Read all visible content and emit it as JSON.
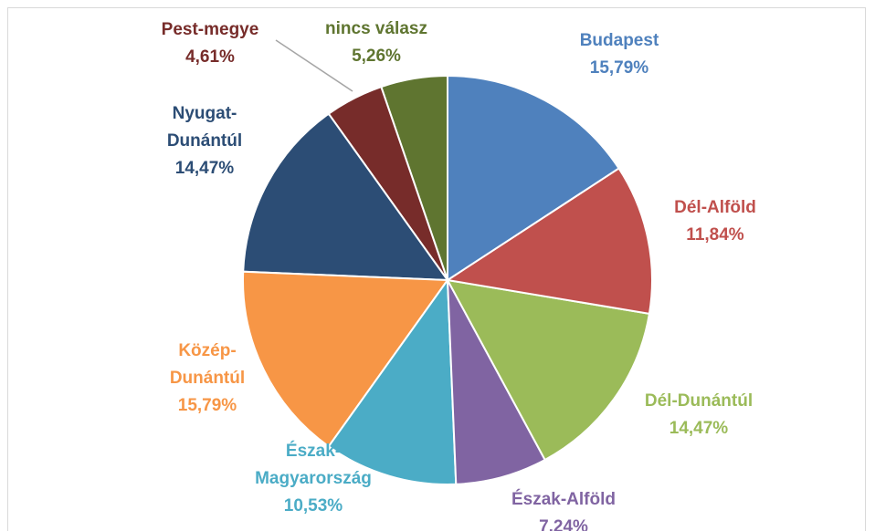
{
  "chart_data": {
    "type": "pie",
    "categories": [
      "Budapest",
      "Dél-Alföld",
      "Dél-Dunántúl",
      "Észak-Alföld",
      "Észak-Magyarország",
      "Közép-Dunántúl",
      "Nyugat-Dunántúl",
      "Pest-megye",
      "nincs válasz"
    ],
    "values": [
      15.79,
      11.84,
      14.47,
      7.24,
      10.53,
      15.79,
      14.47,
      4.61,
      5.26
    ],
    "value_labels": [
      "15,79%",
      "11,84%",
      "14,47%",
      "7,24%",
      "10,53%",
      "15,79%",
      "14,47%",
      "4,61%",
      "5,26%"
    ],
    "colors": [
      "#4f81bd",
      "#c0504d",
      "#9bbb59",
      "#8064a2",
      "#4bacc6",
      "#f79646",
      "#2c4d75",
      "#772c2a",
      "#5f7530"
    ]
  }
}
